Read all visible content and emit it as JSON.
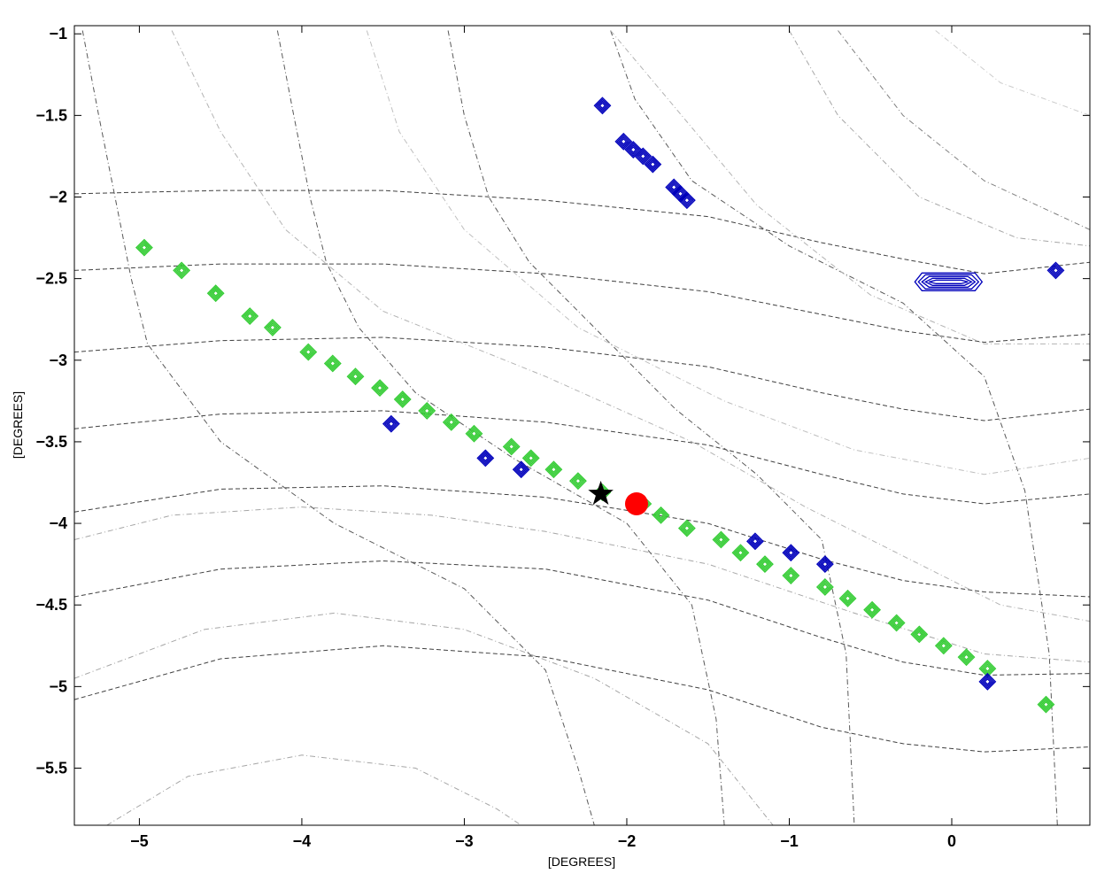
{
  "chart_data": {
    "type": "scatter",
    "title": "",
    "xlabel": "[DEGREES]",
    "ylabel": "[DEGREES]",
    "xlim": [
      -5.4,
      0.85
    ],
    "ylim": [
      -5.85,
      -0.95
    ],
    "x_ticks": [
      -5,
      -4,
      -3,
      -2,
      -1,
      0
    ],
    "y_ticks": [
      -1,
      -1.5,
      -2,
      -2.5,
      -3,
      -3.5,
      -4,
      -4.5,
      -5,
      -5.5
    ],
    "x_tick_labels": [
      "−5",
      "−4",
      "−3",
      "−2",
      "−1",
      "0"
    ],
    "y_tick_labels": [
      "−1",
      "−1.5",
      "−2",
      "−2.5",
      "−3",
      "−3.5",
      "−4",
      "−4.5",
      "−5",
      "−5.5"
    ],
    "grid": false,
    "colors": {
      "green": "#33cc33",
      "blue": "#0000bb",
      "red": "#ff0000",
      "star": "#000000",
      "contour": "#444444"
    },
    "series": [
      {
        "marker": "diamond",
        "color": "green",
        "points": [
          [
            -4.97,
            -2.31
          ],
          [
            -4.74,
            -2.45
          ],
          [
            -4.53,
            -2.59
          ],
          [
            -4.32,
            -2.73
          ],
          [
            -4.18,
            -2.8
          ],
          [
            -3.96,
            -2.95
          ],
          [
            -3.81,
            -3.02
          ],
          [
            -3.67,
            -3.1
          ],
          [
            -3.52,
            -3.17
          ],
          [
            -3.38,
            -3.24
          ],
          [
            -3.23,
            -3.31
          ],
          [
            -3.08,
            -3.38
          ],
          [
            -2.94,
            -3.45
          ],
          [
            -2.71,
            -3.53
          ],
          [
            -2.59,
            -3.6
          ],
          [
            -2.45,
            -3.67
          ],
          [
            -2.3,
            -3.74
          ],
          [
            -2.15,
            -3.81
          ],
          [
            -1.9,
            -3.88
          ],
          [
            -1.79,
            -3.95
          ],
          [
            -1.63,
            -4.03
          ],
          [
            -1.42,
            -4.1
          ],
          [
            -1.3,
            -4.18
          ],
          [
            -1.15,
            -4.25
          ],
          [
            -0.99,
            -4.32
          ],
          [
            -0.78,
            -4.39
          ],
          [
            -0.64,
            -4.46
          ],
          [
            -0.49,
            -4.53
          ],
          [
            -0.34,
            -4.61
          ],
          [
            -0.2,
            -4.68
          ],
          [
            -0.05,
            -4.75
          ],
          [
            0.09,
            -4.82
          ],
          [
            0.22,
            -4.89
          ],
          [
            0.58,
            -5.11
          ]
        ]
      },
      {
        "marker": "diamond",
        "color": "blue",
        "points": [
          [
            -2.15,
            -1.44
          ],
          [
            -2.02,
            -1.66
          ],
          [
            -1.96,
            -1.71
          ],
          [
            -1.9,
            -1.75
          ],
          [
            -1.84,
            -1.8
          ],
          [
            -1.71,
            -1.94
          ],
          [
            -1.67,
            -1.98
          ],
          [
            -1.63,
            -2.02
          ],
          [
            0.64,
            -2.45
          ],
          [
            -3.45,
            -3.39
          ],
          [
            -2.87,
            -3.6
          ],
          [
            -2.65,
            -3.67
          ],
          [
            -1.21,
            -4.11
          ],
          [
            -0.99,
            -4.18
          ],
          [
            -0.78,
            -4.25
          ],
          [
            0.22,
            -4.97
          ]
        ]
      },
      {
        "marker": "hexagon",
        "color": "blue",
        "points": [
          [
            -0.02,
            -2.52
          ]
        ]
      },
      {
        "marker": "circle",
        "color": "red",
        "points": [
          [
            -1.94,
            -3.88
          ]
        ]
      },
      {
        "marker": "star",
        "color": "star",
        "points": [
          [
            -2.16,
            -3.82
          ]
        ]
      }
    ],
    "contours": [
      {
        "style": "dash",
        "gray": 0.25,
        "pts": [
          [
            -5.4,
            -1.98
          ],
          [
            -4.5,
            -1.96
          ],
          [
            -3.5,
            -1.96
          ],
          [
            -2.5,
            -2.02
          ],
          [
            -1.5,
            -2.12
          ],
          [
            -0.8,
            -2.28
          ],
          [
            -0.3,
            -2.38
          ],
          [
            0.2,
            -2.47
          ],
          [
            0.85,
            -2.4
          ]
        ]
      },
      {
        "style": "dash",
        "gray": 0.25,
        "pts": [
          [
            -5.4,
            -2.45
          ],
          [
            -4.5,
            -2.41
          ],
          [
            -3.5,
            -2.41
          ],
          [
            -2.5,
            -2.47
          ],
          [
            -1.5,
            -2.58
          ],
          [
            -0.8,
            -2.72
          ],
          [
            -0.3,
            -2.82
          ],
          [
            0.2,
            -2.89
          ],
          [
            0.85,
            -2.84
          ]
        ]
      },
      {
        "style": "dash",
        "gray": 0.25,
        "pts": [
          [
            -5.4,
            -2.95
          ],
          [
            -4.5,
            -2.88
          ],
          [
            -3.5,
            -2.86
          ],
          [
            -2.5,
            -2.92
          ],
          [
            -1.5,
            -3.04
          ],
          [
            -0.8,
            -3.2
          ],
          [
            -0.3,
            -3.3
          ],
          [
            0.2,
            -3.37
          ],
          [
            0.85,
            -3.3
          ]
        ]
      },
      {
        "style": "dash",
        "gray": 0.25,
        "pts": [
          [
            -5.4,
            -3.42
          ],
          [
            -4.5,
            -3.33
          ],
          [
            -3.5,
            -3.31
          ],
          [
            -2.5,
            -3.38
          ],
          [
            -1.5,
            -3.52
          ],
          [
            -0.8,
            -3.7
          ],
          [
            -0.3,
            -3.82
          ],
          [
            0.2,
            -3.88
          ],
          [
            0.85,
            -3.82
          ]
        ]
      },
      {
        "style": "dash",
        "gray": 0.25,
        "pts": [
          [
            -5.4,
            -3.93
          ],
          [
            -4.5,
            -3.79
          ],
          [
            -3.5,
            -3.77
          ],
          [
            -2.5,
            -3.84
          ],
          [
            -1.5,
            -4.0
          ],
          [
            -0.8,
            -4.22
          ],
          [
            -0.3,
            -4.35
          ],
          [
            0.2,
            -4.42
          ],
          [
            0.85,
            -4.45
          ]
        ]
      },
      {
        "style": "dash",
        "gray": 0.25,
        "pts": [
          [
            -5.4,
            -4.45
          ],
          [
            -4.5,
            -4.28
          ],
          [
            -3.5,
            -4.23
          ],
          [
            -2.5,
            -4.28
          ],
          [
            -1.5,
            -4.47
          ],
          [
            -0.8,
            -4.7
          ],
          [
            -0.3,
            -4.85
          ],
          [
            0.2,
            -4.93
          ],
          [
            0.85,
            -4.92
          ]
        ]
      },
      {
        "style": "dash",
        "gray": 0.25,
        "pts": [
          [
            -5.4,
            -5.08
          ],
          [
            -4.5,
            -4.83
          ],
          [
            -3.5,
            -4.75
          ],
          [
            -2.5,
            -4.82
          ],
          [
            -1.5,
            -5.02
          ],
          [
            -0.8,
            -5.25
          ],
          [
            -0.3,
            -5.35
          ],
          [
            0.2,
            -5.4
          ],
          [
            0.85,
            -5.37
          ]
        ]
      },
      {
        "style": "dashdot",
        "gray": 0.35,
        "pts": [
          [
            -5.35,
            -0.98
          ],
          [
            -5.25,
            -1.5
          ],
          [
            -5.15,
            -2.0
          ],
          [
            -5.05,
            -2.5
          ],
          [
            -4.95,
            -2.9
          ],
          [
            -4.5,
            -3.5
          ],
          [
            -3.8,
            -4.0
          ],
          [
            -3.0,
            -4.4
          ],
          [
            -2.5,
            -4.9
          ],
          [
            -2.3,
            -5.5
          ],
          [
            -2.2,
            -5.85
          ]
        ]
      },
      {
        "style": "dashdot",
        "gray": 0.35,
        "pts": [
          [
            -4.15,
            -0.98
          ],
          [
            -4.05,
            -1.5
          ],
          [
            -3.95,
            -2.0
          ],
          [
            -3.85,
            -2.4
          ],
          [
            -3.65,
            -2.8
          ],
          [
            -3.3,
            -3.2
          ],
          [
            -2.7,
            -3.6
          ],
          [
            -2.0,
            -4.0
          ],
          [
            -1.6,
            -4.5
          ],
          [
            -1.45,
            -5.2
          ],
          [
            -1.4,
            -5.85
          ]
        ]
      },
      {
        "style": "dashdot",
        "gray": 0.35,
        "pts": [
          [
            -3.1,
            -0.98
          ],
          [
            -3.0,
            -1.5
          ],
          [
            -2.85,
            -2.0
          ],
          [
            -2.6,
            -2.4
          ],
          [
            -2.2,
            -2.8
          ],
          [
            -1.7,
            -3.3
          ],
          [
            -1.2,
            -3.7
          ],
          [
            -0.8,
            -4.1
          ],
          [
            -0.65,
            -4.8
          ],
          [
            -0.6,
            -5.85
          ]
        ]
      },
      {
        "style": "dashdot",
        "gray": 0.35,
        "pts": [
          [
            -2.1,
            -0.98
          ],
          [
            -1.95,
            -1.4
          ],
          [
            -1.6,
            -1.9
          ],
          [
            -1.0,
            -2.3
          ],
          [
            -0.3,
            -2.65
          ],
          [
            0.2,
            -3.1
          ],
          [
            0.45,
            -3.8
          ],
          [
            0.6,
            -4.8
          ],
          [
            0.65,
            -5.85
          ]
        ]
      },
      {
        "style": "dashdot",
        "gray": 0.5,
        "pts": [
          [
            -0.7,
            -0.98
          ],
          [
            -0.3,
            -1.5
          ],
          [
            0.2,
            -1.9
          ],
          [
            0.85,
            -2.2
          ]
        ]
      },
      {
        "style": "dashdot",
        "gray": 0.65,
        "pts": [
          [
            -5.4,
            -4.1
          ],
          [
            -4.8,
            -3.95
          ],
          [
            -4.0,
            -3.9
          ],
          [
            -3.2,
            -3.95
          ],
          [
            -2.5,
            -4.05
          ],
          [
            -1.5,
            -4.25
          ],
          [
            -0.6,
            -4.55
          ],
          [
            0.2,
            -4.8
          ],
          [
            0.85,
            -4.85
          ]
        ]
      },
      {
        "style": "dashdot",
        "gray": 0.65,
        "pts": [
          [
            -5.4,
            -4.95
          ],
          [
            -4.6,
            -4.65
          ],
          [
            -3.8,
            -4.55
          ],
          [
            -3.0,
            -4.65
          ],
          [
            -2.2,
            -4.95
          ],
          [
            -1.5,
            -5.35
          ],
          [
            -1.1,
            -5.85
          ]
        ]
      },
      {
        "style": "dashdot",
        "gray": 0.65,
        "pts": [
          [
            -5.2,
            -5.85
          ],
          [
            -4.7,
            -5.55
          ],
          [
            -4.0,
            -5.42
          ],
          [
            -3.3,
            -5.5
          ],
          [
            -2.8,
            -5.75
          ],
          [
            -2.65,
            -5.85
          ]
        ]
      },
      {
        "style": "dashdot",
        "gray": 0.65,
        "pts": [
          [
            -1.0,
            -0.98
          ],
          [
            -0.7,
            -1.5
          ],
          [
            -0.2,
            -2.0
          ],
          [
            0.4,
            -2.25
          ],
          [
            0.85,
            -2.3
          ]
        ]
      },
      {
        "style": "dashdot",
        "gray": 0.7,
        "pts": [
          [
            -2.1,
            -0.98
          ],
          [
            -1.2,
            -2.05
          ],
          [
            -0.5,
            -2.6
          ],
          [
            0.2,
            -2.9
          ],
          [
            0.85,
            -2.9
          ]
        ]
      },
      {
        "style": "dashdot",
        "gray": 0.7,
        "pts": [
          [
            -4.8,
            -0.98
          ],
          [
            -4.5,
            -1.6
          ],
          [
            -4.1,
            -2.2
          ],
          [
            -3.5,
            -2.7
          ],
          [
            -2.5,
            -3.1
          ],
          [
            -1.6,
            -3.5
          ],
          [
            -0.9,
            -3.9
          ],
          [
            -0.3,
            -4.2
          ],
          [
            0.3,
            -4.5
          ],
          [
            0.85,
            -4.6
          ]
        ]
      },
      {
        "style": "dashdot",
        "gray": 0.75,
        "pts": [
          [
            -3.6,
            -0.98
          ],
          [
            -3.4,
            -1.6
          ],
          [
            -3.0,
            -2.2
          ],
          [
            -2.3,
            -2.8
          ],
          [
            -1.4,
            -3.25
          ],
          [
            -0.6,
            -3.55
          ],
          [
            0.2,
            -3.7
          ],
          [
            0.85,
            -3.6
          ]
        ]
      },
      {
        "style": "dashdot",
        "gray": 0.8,
        "pts": [
          [
            -0.1,
            -0.98
          ],
          [
            0.3,
            -1.3
          ],
          [
            0.85,
            -1.5
          ]
        ]
      }
    ]
  }
}
